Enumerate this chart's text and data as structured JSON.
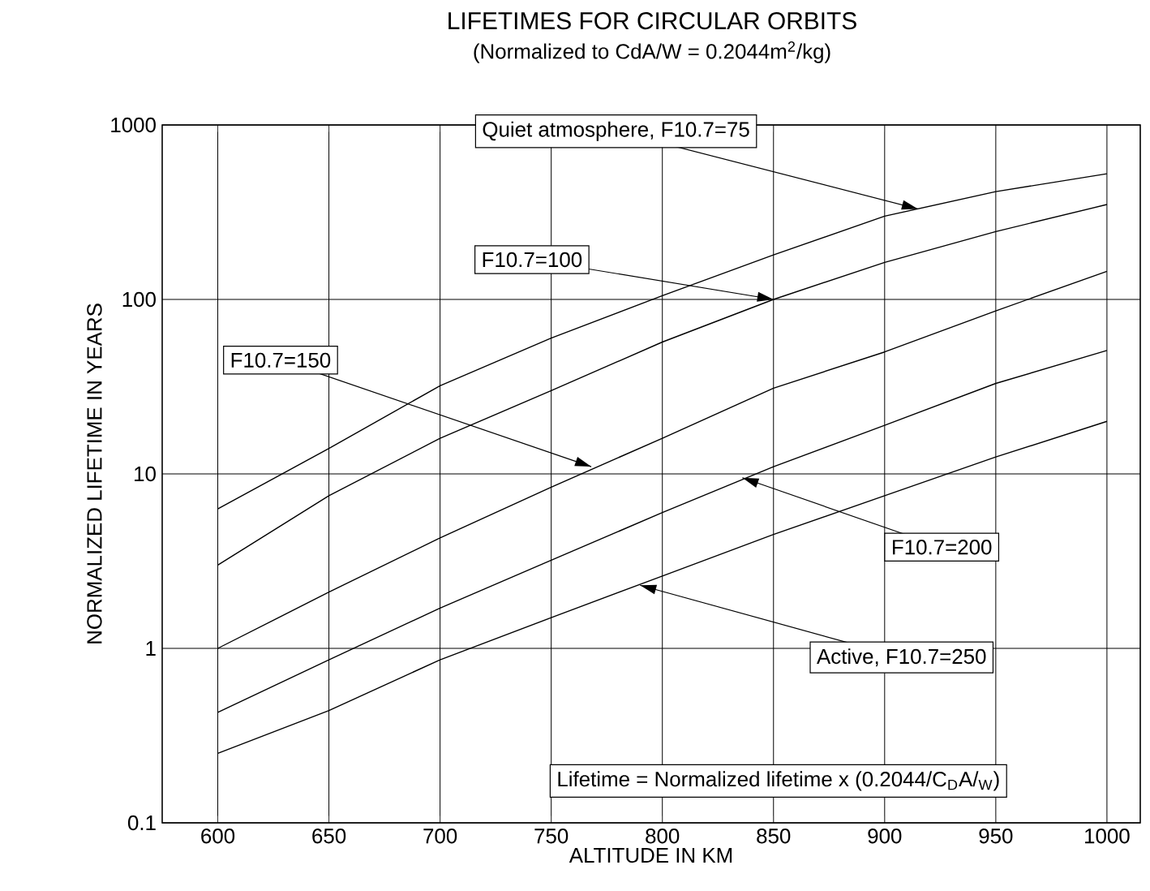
{
  "chart_data": {
    "type": "line",
    "title": "LIFETIMES FOR CIRCULAR ORBITS",
    "subtitle": "(Normalized to CdA/W = 0.2044m$^{2}$/kg)",
    "xlabel": "ALTITUDE IN KM",
    "ylabel": "NORMALIZED LIFETIME IN YEARS",
    "x": [
      600,
      650,
      700,
      750,
      800,
      850,
      900,
      950,
      1000
    ],
    "series": [
      {
        "color": "#000000",
        "values": [
          6.3,
          14,
          32,
          60,
          105,
          180,
          300,
          415,
          525
        ]
      },
      {
        "color": "#000000",
        "values": [
          3.0,
          7.5,
          16,
          30,
          57,
          100,
          163,
          245,
          350
        ]
      },
      {
        "color": "#000000",
        "values": [
          1.0,
          2.1,
          4.3,
          8.4,
          16,
          31,
          50,
          86,
          145
        ]
      },
      {
        "color": "#000000",
        "values": [
          0.43,
          0.86,
          1.7,
          3.2,
          6.0,
          11,
          19,
          33,
          51
        ]
      },
      {
        "color": "#000000",
        "values": [
          0.25,
          0.44,
          0.86,
          1.5,
          2.6,
          4.5,
          7.5,
          12.5,
          20
        ]
      }
    ],
    "annotations": [
      {
        "text": "Quiet atmosphere, F10.7=75",
        "x": 915,
        "y": 330
      },
      {
        "text": "F10.7=100",
        "x": 850,
        "y": 100
      },
      {
        "text": "F10.7=150",
        "x": 768,
        "y": 11
      },
      {
        "text": "F10.7=200",
        "x": 836,
        "y": 9.5
      },
      {
        "text": "Active, F10.7=250",
        "x": 790,
        "y": 2.3
      },
      "Lifetime = Normalized lifetime x (0.2044/C$_{D}$A/$_{W}$)"
    ],
    "xlim": [
      575,
      1015
    ],
    "ylim": [
      0.1,
      1000
    ],
    "xticks": [
      600,
      650,
      700,
      750,
      800,
      850,
      900,
      950,
      1000
    ],
    "yticks": [
      0.1,
      1,
      10,
      100,
      1000
    ],
    "log": "y",
    "grid": true,
    "marker": "none",
    "line_style": "solid"
  }
}
